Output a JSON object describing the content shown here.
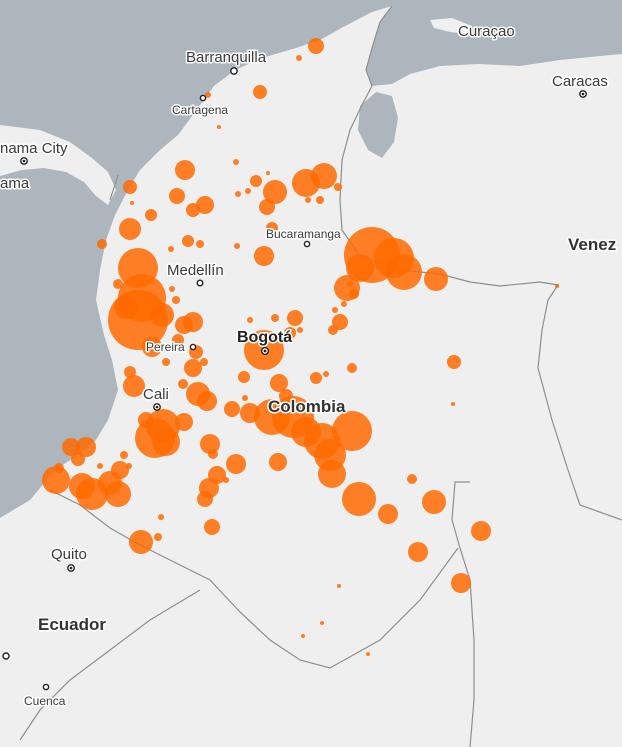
{
  "map": {
    "colors": {
      "water": "#aeb6bd",
      "land": "#efefef",
      "border": "#8e8e8e",
      "bubble": "#ff6a00"
    },
    "country_labels": {
      "colombia": "Colombia",
      "ecuador": "Ecuador",
      "venezuela": "Venez"
    },
    "city_labels": {
      "barranquilla": "Barranquilla",
      "cartagena": "Cartagena",
      "curacao": "Curaçao",
      "caracas": "Caracas",
      "panama_city": "nama City",
      "panama": "ama",
      "bucaramanga": "Bucaramanga",
      "medellin": "Medellín",
      "pereira": "Pereira",
      "bogota": "Bogotá",
      "cali": "Cali",
      "quito": "Quito",
      "cuenca": "Cuenca"
    },
    "bubble_count": 140
  }
}
